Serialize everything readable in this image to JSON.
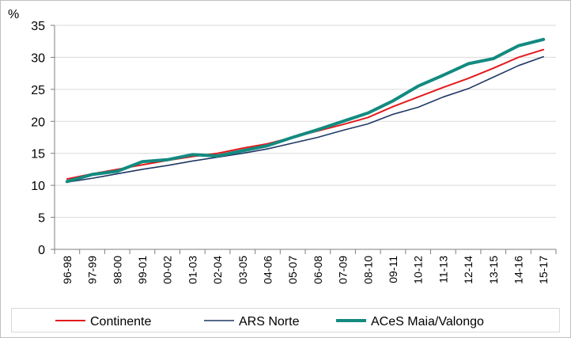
{
  "chart_data": {
    "type": "line",
    "title": "",
    "xlabel": "",
    "ylabel": "%",
    "ylim": [
      0,
      35
    ],
    "yticks": [
      0,
      5,
      10,
      15,
      20,
      25,
      30,
      35
    ],
    "categories": [
      "96-98",
      "97-99",
      "98-00",
      "99-01",
      "00-02",
      "01-03",
      "02-04",
      "03-05",
      "04-06",
      "05-07",
      "06-08",
      "07-09",
      "08-10",
      "09-11",
      "10-12",
      "11-13",
      "12-14",
      "13-15",
      "14-16",
      "15-17"
    ],
    "grid": true,
    "legend_position": "bottom",
    "series": [
      {
        "name": "Continente",
        "color": "#e41a1c",
        "values": [
          11.0,
          11.8,
          12.5,
          13.2,
          13.9,
          14.5,
          15.0,
          15.8,
          16.5,
          17.5,
          18.5,
          19.5,
          20.6,
          22.3,
          23.8,
          25.3,
          26.7,
          28.3,
          30.0,
          31.2
        ]
      },
      {
        "name": "ARS Norte",
        "color": "#1f3864",
        "values": [
          10.5,
          11.1,
          11.8,
          12.5,
          13.1,
          13.8,
          14.4,
          15.0,
          15.7,
          16.6,
          17.5,
          18.6,
          19.6,
          21.1,
          22.2,
          23.8,
          25.1,
          26.9,
          28.7,
          30.1
        ]
      },
      {
        "name": "ACeS Maia/Valongo",
        "color": "#138a80",
        "values": [
          10.6,
          11.7,
          12.2,
          13.7,
          14.0,
          14.8,
          14.6,
          15.4,
          16.2,
          17.5,
          18.7,
          20.0,
          21.3,
          23.2,
          25.5,
          27.2,
          29.0,
          29.8,
          31.8,
          32.8
        ]
      }
    ]
  }
}
